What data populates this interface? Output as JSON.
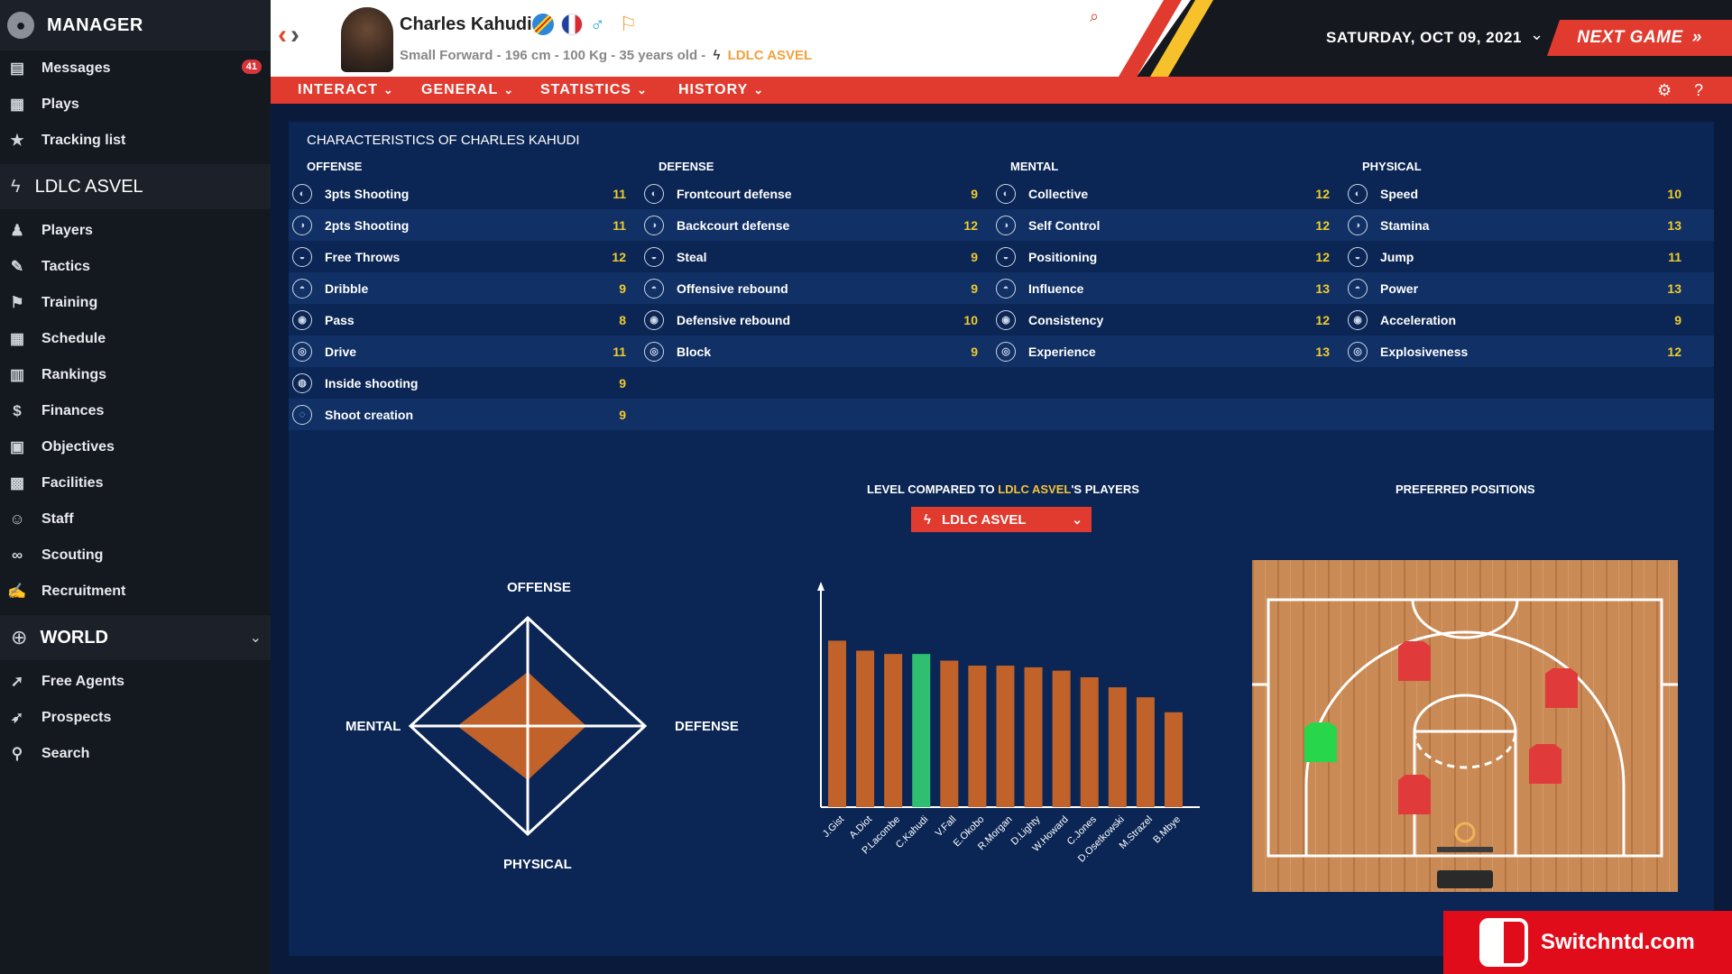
{
  "sidebar": {
    "manager_label": "MANAGER",
    "top_items": [
      {
        "label": "Messages",
        "icon": "inbox-icon",
        "badge": "41"
      },
      {
        "label": "Plays",
        "icon": "clipboard-icon"
      },
      {
        "label": "Tracking list",
        "icon": "star-icon"
      }
    ],
    "club_label": "LDLC ASVEL",
    "club_items": [
      {
        "label": "Players",
        "icon": "players-icon"
      },
      {
        "label": "Tactics",
        "icon": "tactics-icon"
      },
      {
        "label": "Training",
        "icon": "training-icon"
      },
      {
        "label": "Schedule",
        "icon": "calendar-icon"
      },
      {
        "label": "Rankings",
        "icon": "podium-icon"
      },
      {
        "label": "Finances",
        "icon": "money-icon"
      },
      {
        "label": "Objectives",
        "icon": "briefcase-icon"
      },
      {
        "label": "Facilities",
        "icon": "stadium-icon"
      },
      {
        "label": "Staff",
        "icon": "staff-icon"
      },
      {
        "label": "Scouting",
        "icon": "binoculars-icon"
      },
      {
        "label": "Recruitment",
        "icon": "contract-icon"
      }
    ],
    "world_label": "WORLD",
    "world_items": [
      {
        "label": "Free Agents",
        "icon": "free-agent-icon"
      },
      {
        "label": "Prospects",
        "icon": "rocket-icon"
      },
      {
        "label": "Search",
        "icon": "search-icon"
      }
    ]
  },
  "header": {
    "player_name": "Charles Kahudi",
    "player_info": "Small Forward - 196 cm - 100 Kg - 35 years old -",
    "player_club": "LDLC ASVEL",
    "date": "SATURDAY, OCT 09, 2021",
    "next_game": "NEXT GAME"
  },
  "menu": [
    "INTERACT",
    "GENERAL",
    "STATISTICS",
    "HISTORY"
  ],
  "panel": {
    "title": "CHARACTERISTICS OF CHARLES KAHUDI",
    "offense": {
      "label": "OFFENSE",
      "rows": [
        {
          "name": "3pts Shooting",
          "value": "11"
        },
        {
          "name": "2pts Shooting",
          "value": "11"
        },
        {
          "name": "Free Throws",
          "value": "12"
        },
        {
          "name": "Dribble",
          "value": "9"
        },
        {
          "name": "Pass",
          "value": "8"
        },
        {
          "name": "Drive",
          "value": "11"
        },
        {
          "name": "Inside shooting",
          "value": "9"
        },
        {
          "name": "Shoot creation",
          "value": "9"
        }
      ]
    },
    "defense": {
      "label": "DEFENSE",
      "rows": [
        {
          "name": "Frontcourt defense",
          "value": "9"
        },
        {
          "name": "Backcourt defense",
          "value": "12"
        },
        {
          "name": "Steal",
          "value": "9"
        },
        {
          "name": "Offensive rebound",
          "value": "9"
        },
        {
          "name": "Defensive rebound",
          "value": "10"
        },
        {
          "name": "Block",
          "value": "9"
        }
      ]
    },
    "mental": {
      "label": "MENTAL",
      "rows": [
        {
          "name": "Collective",
          "value": "12"
        },
        {
          "name": "Self Control",
          "value": "12"
        },
        {
          "name": "Positioning",
          "value": "12"
        },
        {
          "name": "Influence",
          "value": "13"
        },
        {
          "name": "Consistency",
          "value": "12"
        },
        {
          "name": "Experience",
          "value": "13"
        }
      ]
    },
    "physical": {
      "label": "PHYSICAL",
      "rows": [
        {
          "name": "Speed",
          "value": "10"
        },
        {
          "name": "Stamina",
          "value": "13"
        },
        {
          "name": "Jump",
          "value": "11"
        },
        {
          "name": "Power",
          "value": "13"
        },
        {
          "name": "Acceleration",
          "value": "9"
        },
        {
          "name": "Explosiveness",
          "value": "12"
        }
      ]
    },
    "level_heading_prefix": "LEVEL COMPARED TO ",
    "level_heading_club": "LDLC ASVEL",
    "level_heading_suffix": "'S PLAYERS",
    "team_select": "LDLC ASVEL",
    "preferred_positions": "PREFERRED POSITIONS",
    "radar": {
      "top": "OFFENSE",
      "right": "DEFENSE",
      "bottom": "PHYSICAL",
      "left": "MENTAL"
    }
  },
  "chart_data": {
    "type": "bar",
    "categories": [
      "J.Gist",
      "A.Diot",
      "P.Lacombe",
      "C.Kahudi",
      "V.Fall",
      "E.Okobo",
      "R.Morgan",
      "D.Lighty",
      "W.Howard",
      "C.Jones",
      "D.Osetkowski",
      "M.Strazel",
      "B.Mbye"
    ],
    "values": [
      100,
      94,
      92,
      92,
      88,
      85,
      85,
      84,
      82,
      78,
      72,
      66,
      57
    ],
    "highlight": "C.Kahudi",
    "ylim": [
      0,
      130
    ],
    "colors": {
      "default": "#c0622a",
      "highlight": "#2fbf71"
    }
  },
  "radar_values": {
    "offense": 0.5,
    "defense": 0.5,
    "physical": 0.5,
    "mental": 0.6
  },
  "watermark": "Switchntd.com",
  "colors": {
    "accent": "#e13a2e",
    "value": "#f1cc2b",
    "panel": "#0b2654"
  }
}
